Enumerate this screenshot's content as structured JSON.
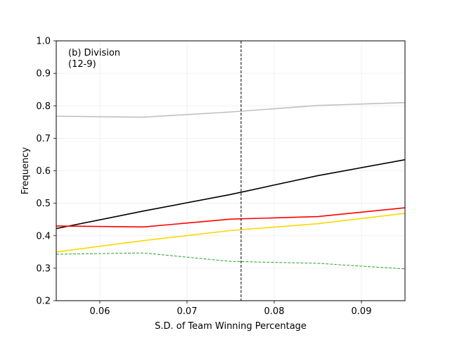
{
  "chart_data": {
    "type": "line",
    "title": "",
    "xlabel": "S.D. of Team Winning Percentage",
    "ylabel": "Frequency",
    "xlim": [
      0.055,
      0.095
    ],
    "ylim": [
      0.2,
      1.0
    ],
    "xticks": [
      0.06,
      0.07,
      0.08,
      0.09
    ],
    "xtick_labels": [
      "0.06",
      "0.07",
      "0.08",
      "0.09"
    ],
    "yticks": [
      0.2,
      0.3,
      0.4,
      0.5,
      0.6,
      0.7,
      0.8,
      0.9,
      1.0
    ],
    "ytick_labels": [
      "0.2",
      "0.3",
      "0.4",
      "0.5",
      "0.6",
      "0.7",
      "0.8",
      "0.9",
      "1.0"
    ],
    "grid": true,
    "annotation_lines": [
      "(b) Division",
      "(12-9)"
    ],
    "vline": {
      "x": 0.0762,
      "style": "dashed",
      "color": "#000000"
    },
    "series": [
      {
        "color": "#c0c0c0",
        "style": "solid",
        "x": [
          0.055,
          0.065,
          0.075,
          0.085,
          0.095
        ],
        "y": [
          0.768,
          0.765,
          0.781,
          0.801,
          0.81
        ]
      },
      {
        "color": "#000000",
        "style": "solid",
        "x": [
          0.055,
          0.065,
          0.075,
          0.085,
          0.095
        ],
        "y": [
          0.422,
          0.476,
          0.527,
          0.585,
          0.634
        ]
      },
      {
        "color": "#ff0000",
        "style": "solid",
        "x": [
          0.055,
          0.065,
          0.075,
          0.085,
          0.095
        ],
        "y": [
          0.43,
          0.427,
          0.451,
          0.459,
          0.486
        ]
      },
      {
        "color": "#ffd700",
        "style": "solid",
        "x": [
          0.055,
          0.065,
          0.075,
          0.085,
          0.095
        ],
        "y": [
          0.35,
          0.385,
          0.416,
          0.437,
          0.469
        ]
      },
      {
        "color": "#2ca02c",
        "style": "dashed",
        "x": [
          0.055,
          0.065,
          0.075,
          0.085,
          0.095
        ],
        "y": [
          0.343,
          0.347,
          0.321,
          0.315,
          0.298
        ]
      }
    ]
  }
}
